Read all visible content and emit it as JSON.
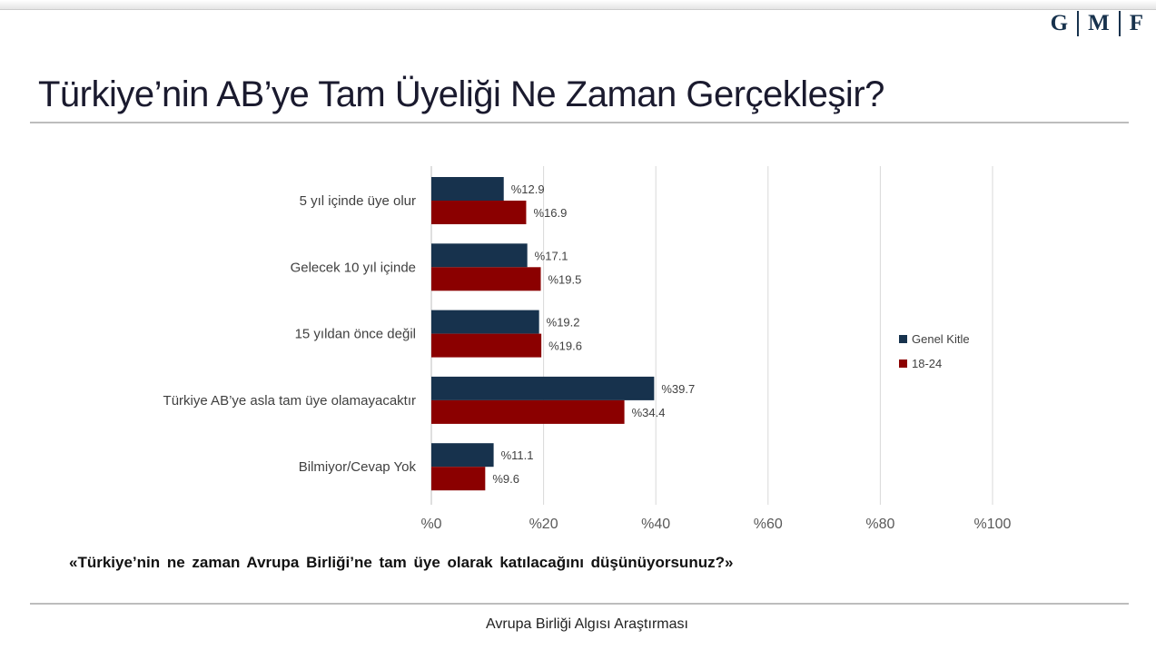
{
  "header": {
    "logo_letters": [
      "G",
      "M",
      "F"
    ],
    "title": "Türkiye’nin AB’ye Tam Üyeliği Ne Zaman Gerçekleşir?"
  },
  "question": "«Türkiye’nin ne zaman Avrupa Birliği’ne tam üye olarak katılacağını düşünüyorsunuz?»",
  "footer": "Avrupa Birliği Algısı Araştırması",
  "chart_data": {
    "type": "bar",
    "orientation": "horizontal",
    "categories": [
      "5 yıl içinde üye olur",
      "Gelecek 10 yıl içinde",
      "15 yıldan önce değil",
      "Türkiye AB’ye asla tam üye olamayacaktır",
      "Bilmiyor/Cevap Yok"
    ],
    "series": [
      {
        "name": "Genel Kitle",
        "color": "#17324d",
        "values": [
          12.9,
          17.1,
          19.2,
          39.7,
          11.1
        ],
        "labels": [
          "%12.9",
          "%17.1",
          "%19.2",
          "%39.7",
          "%11.1"
        ]
      },
      {
        "name": "18-24",
        "color": "#8b0000",
        "values": [
          16.9,
          19.5,
          19.6,
          34.4,
          9.6
        ],
        "labels": [
          "%16.9",
          "%19.5",
          "%19.6",
          "%34.4",
          "%9.6"
        ]
      }
    ],
    "xlim": [
      0,
      100
    ],
    "xticks": [
      0,
      20,
      40,
      60,
      80,
      100
    ],
    "xtick_labels": [
      "%0",
      "%20",
      "%40",
      "%60",
      "%80",
      "%100"
    ],
    "grid": true,
    "legend": "right"
  }
}
